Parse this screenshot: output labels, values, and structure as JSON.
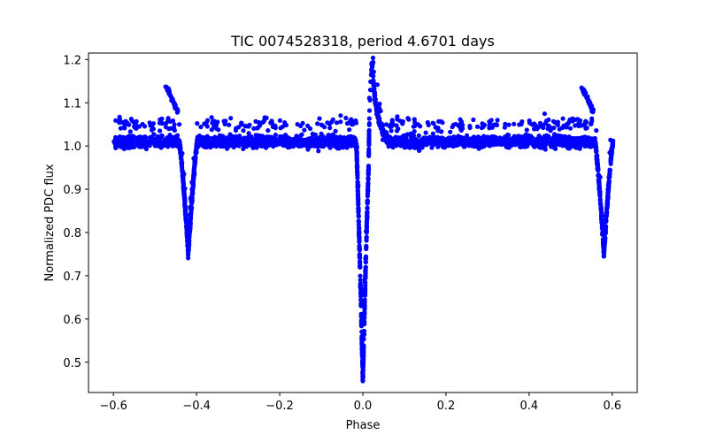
{
  "chart_data": {
    "type": "scatter",
    "title": "TIC 0074528318, period 4.6701 days",
    "xlabel": "Phase",
    "ylabel": "Normalized PDC flux",
    "xlim": [
      -0.66,
      0.66
    ],
    "ylim": [
      0.43,
      1.215
    ],
    "xticks": [
      -0.6,
      -0.4,
      -0.2,
      0.0,
      0.2,
      0.4,
      0.6
    ],
    "xtick_labels": [
      "−0.6",
      "−0.4",
      "−0.2",
      "0.0",
      "0.2",
      "0.4",
      "0.6"
    ],
    "yticks": [
      0.5,
      0.6,
      0.7,
      0.8,
      0.9,
      1.0,
      1.1,
      1.2
    ],
    "ytick_labels": [
      "0.5",
      "0.6",
      "0.7",
      "0.8",
      "0.9",
      "1.0",
      "1.1",
      "1.2"
    ],
    "grid": false,
    "series": [
      {
        "name": "PDC flux",
        "color": "#0000ff",
        "x_range": [
          -0.6,
          0.6
        ],
        "baseline": 1.01,
        "scatter_spread": 0.03,
        "primary_eclipse": {
          "phase": 0.0,
          "min_flux": 0.46
        },
        "secondary_eclipses": [
          {
            "phase": -0.42,
            "min_flux": 0.75
          },
          {
            "phase": 0.58,
            "min_flux": 0.75
          }
        ],
        "post_eclipse_spike": {
          "phase": 0.022,
          "peak_flux": 1.19
        },
        "pre_secondary_bump": [
          {
            "phase": -0.475,
            "peak_flux": 1.14
          },
          {
            "phase": 0.525,
            "peak_flux": 1.14
          }
        ]
      }
    ]
  }
}
